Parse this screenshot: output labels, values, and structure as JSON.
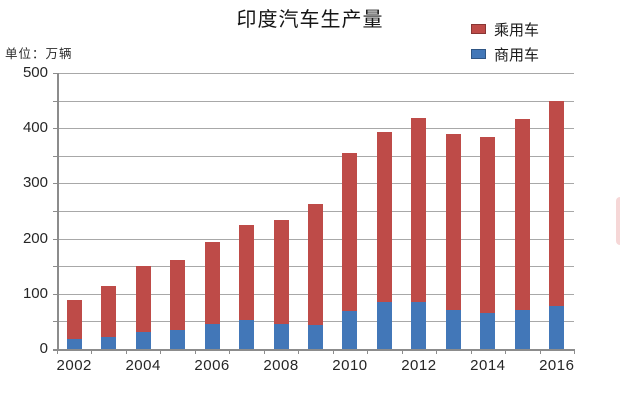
{
  "title": "印度汽车生产量",
  "unit_label": "单位：万辆",
  "colors": {
    "passenger_red": "#be4b48",
    "commercial_blue": "#4277b8",
    "gridline": "#a8a8a8",
    "axis": "#8c8c8c",
    "text": "#262626"
  },
  "legend": {
    "items": [
      {
        "label": "乘用车",
        "color": "#be4b48"
      },
      {
        "label": "商用车",
        "color": "#4277b8"
      }
    ]
  },
  "chart_data": {
    "type": "bar",
    "stacked": true,
    "stack_bottom": "商用车",
    "title": "印度汽车生产量",
    "ylabel": "单位：万辆",
    "categories": [
      "2002",
      "2003",
      "2004",
      "2005",
      "2006",
      "2007",
      "2008",
      "2009",
      "2010",
      "2011",
      "2012",
      "2013",
      "2014",
      "2015",
      "2016"
    ],
    "series": [
      {
        "name": "乘用车",
        "color": "#be4b48",
        "values": [
          70,
          93,
          120,
          126,
          149,
          172,
          188,
          219,
          286,
          307,
          333,
          318,
          319,
          345,
          372
        ]
      },
      {
        "name": "商用车",
        "color": "#4277b8",
        "values": [
          18,
          22,
          30,
          35,
          45,
          52,
          45,
          43,
          69,
          86,
          85,
          71,
          65,
          71,
          78
        ]
      }
    ],
    "totals": [
      88,
      115,
      150,
      161,
      194,
      224,
      233,
      262,
      355,
      393,
      418,
      389,
      384,
      416,
      450
    ],
    "ylim": [
      0,
      500
    ],
    "ytick_step": 50,
    "ylabel_step": 100,
    "xtick_labels_shown": [
      "2002",
      "2004",
      "2006",
      "2008",
      "2010",
      "2012",
      "2014",
      "2016"
    ],
    "grid": true,
    "legend_position": "top-right"
  }
}
